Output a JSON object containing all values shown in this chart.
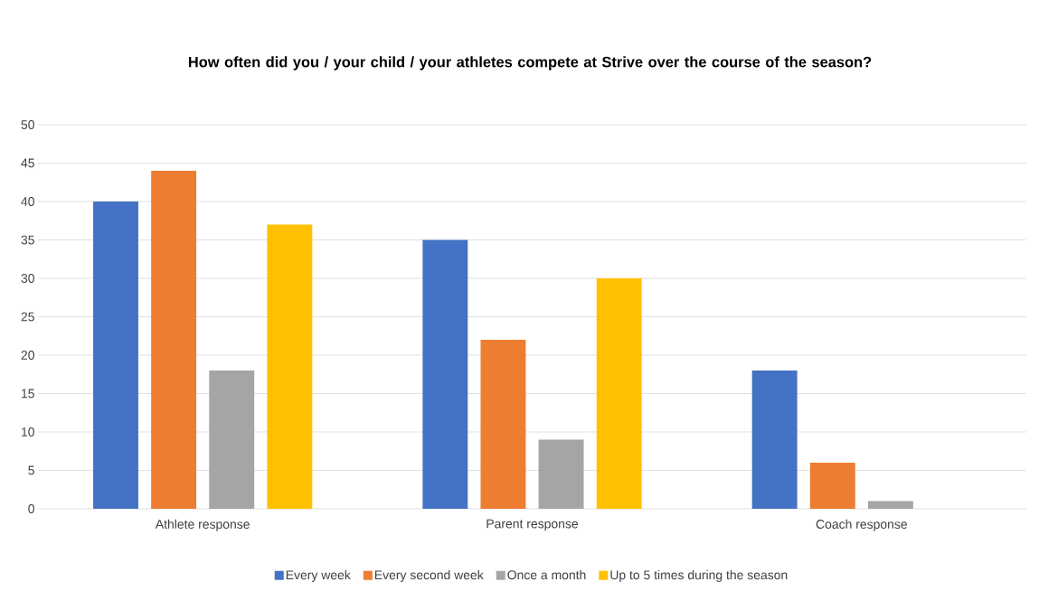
{
  "chart_data": {
    "type": "bar",
    "title": "How often did you / your child / your athletes compete at Strive over the course of the season?",
    "categories": [
      "Athlete response",
      "Parent response",
      "Coach response"
    ],
    "series": [
      {
        "name": "Every week",
        "color": "#4472c4",
        "values": [
          40,
          35,
          18
        ]
      },
      {
        "name": "Every second week",
        "color": "#ed7d31",
        "values": [
          44,
          22,
          6
        ]
      },
      {
        "name": "Once a month",
        "color": "#a5a5a5",
        "values": [
          18,
          9,
          1
        ]
      },
      {
        "name": "Up to 5 times during the season",
        "color": "#ffc000",
        "values": [
          37,
          30,
          0
        ]
      }
    ],
    "ylim": [
      0,
      50
    ],
    "yticks": [
      0,
      5,
      10,
      15,
      20,
      25,
      30,
      35,
      40,
      45,
      50
    ],
    "grid": "y",
    "legend": "bottom"
  }
}
